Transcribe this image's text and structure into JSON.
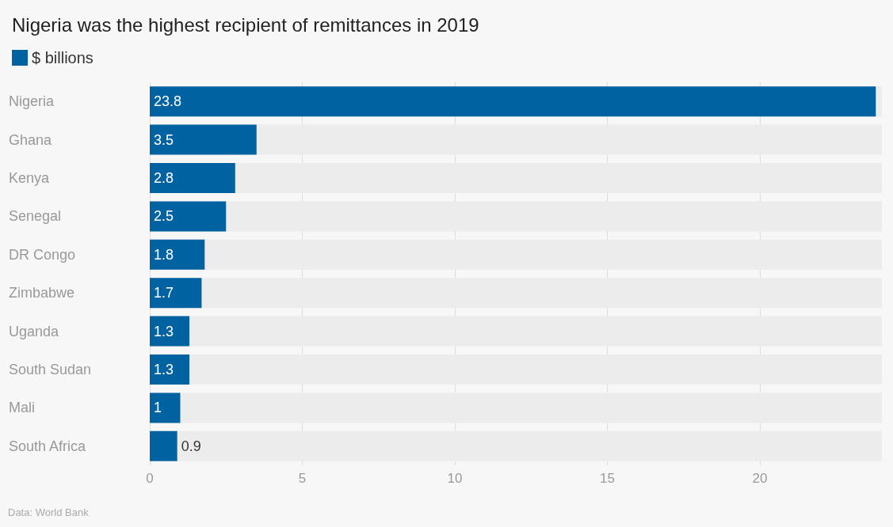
{
  "chart_data": {
    "type": "bar",
    "orientation": "horizontal",
    "title": "Nigeria was the highest recipient of remittances in 2019",
    "categories": [
      "Nigeria",
      "Ghana",
      "Kenya",
      "Senegal",
      "DR Congo",
      "Zimbabwe",
      "Uganda",
      "South Sudan",
      "Mali",
      "South Africa"
    ],
    "series": [
      {
        "name": "$ billions",
        "color": "#0062a0",
        "values": [
          23.8,
          3.5,
          2.8,
          2.5,
          1.8,
          1.7,
          1.3,
          1.3,
          1,
          0.9
        ]
      }
    ],
    "xlim": [
      0,
      24
    ],
    "xticks": [
      0,
      5,
      10,
      15,
      20
    ],
    "grid": "x",
    "legend": "top left",
    "data_labels": true,
    "annotations": [
      "Data: World Bank"
    ]
  }
}
